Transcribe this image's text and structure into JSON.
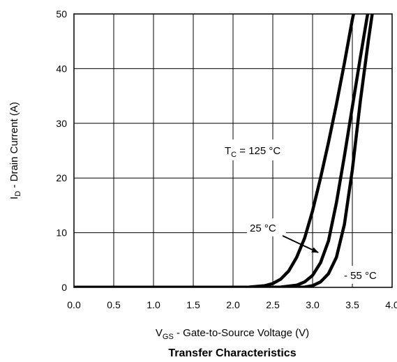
{
  "chart_data": {
    "type": "line",
    "title": "Transfer Characteristics",
    "xlabel": {
      "main": "V",
      "sub": "GS",
      "rest": " - Gate-to-Source Voltage (V)"
    },
    "ylabel": {
      "main": "I",
      "sub": "D",
      "rest": " - Drain Current (A)"
    },
    "xlim": [
      0.0,
      4.0
    ],
    "ylim": [
      0,
      50
    ],
    "xticks": [
      "0.0",
      "0.5",
      "1.0",
      "1.5",
      "2.0",
      "2.5",
      "3.0",
      "3.5",
      "4.0"
    ],
    "yticks": [
      "0",
      "10",
      "20",
      "30",
      "40",
      "50"
    ],
    "grid": true,
    "series": [
      {
        "name": "TC = 125 °C",
        "x": [
          0.0,
          2.0,
          2.2,
          2.4,
          2.5,
          2.6,
          2.7,
          2.8,
          2.9,
          3.0,
          3.1,
          3.2,
          3.3,
          3.4,
          3.5,
          3.65
        ],
        "y": [
          0.0,
          0.0,
          0.05,
          0.3,
          0.7,
          1.5,
          3.0,
          5.5,
          9.0,
          14.0,
          20.0,
          26.5,
          33.5,
          41.0,
          49.0,
          59.0
        ]
      },
      {
        "name": "25 °C",
        "x": [
          0.0,
          2.4,
          2.6,
          2.8,
          2.9,
          3.0,
          3.1,
          3.2,
          3.3,
          3.4,
          3.5,
          3.6,
          3.75
        ],
        "y": [
          0.0,
          0.0,
          0.05,
          0.4,
          1.0,
          2.2,
          4.5,
          8.5,
          15.5,
          24.0,
          33.0,
          42.0,
          55.0
        ]
      },
      {
        "name": "- 55 °C",
        "x": [
          0.0,
          2.7,
          2.9,
          3.0,
          3.1,
          3.2,
          3.3,
          3.4,
          3.5,
          3.6,
          3.7,
          3.85
        ],
        "y": [
          0.0,
          0.0,
          0.05,
          0.3,
          1.0,
          2.5,
          5.5,
          11.5,
          21.5,
          34.0,
          45.0,
          60.0
        ]
      }
    ],
    "annotations": [
      {
        "text_main": "T",
        "text_sub": "C",
        "text_rest": " = 125 °C"
      },
      {
        "text": "25 °C"
      },
      {
        "text": "- 55 °C"
      }
    ]
  }
}
